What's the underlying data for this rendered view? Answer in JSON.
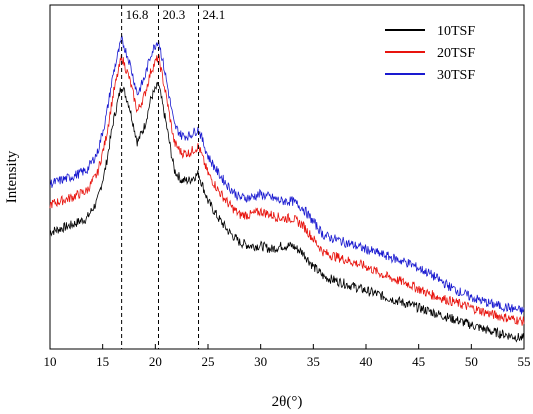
{
  "chart_data": {
    "type": "line",
    "title": "",
    "xlabel": "2θ(°)",
    "ylabel": "Intensity",
    "xlim": [
      10,
      55
    ],
    "ylim": [
      0,
      1
    ],
    "x_ticks": [
      10,
      15,
      20,
      25,
      30,
      35,
      40,
      45,
      50,
      55
    ],
    "y_ticks": [],
    "grid": false,
    "legend_position": "top-right",
    "peak_markers": [
      {
        "x": 16.8,
        "label": "16.8"
      },
      {
        "x": 20.3,
        "label": "20.3"
      },
      {
        "x": 24.1,
        "label": "24.1"
      }
    ],
    "series": [
      {
        "name": "10TSF",
        "color": "#000000",
        "x": [
          10,
          12,
          13.5,
          14.5,
          15.3,
          16,
          16.8,
          17.5,
          18.3,
          19,
          19.6,
          20.3,
          21,
          21.8,
          22.5,
          23.2,
          24.1,
          25,
          26,
          27,
          28,
          29,
          30,
          31,
          32,
          33,
          34,
          35,
          36,
          38,
          40,
          42,
          44,
          46,
          48,
          50,
          52,
          55
        ],
        "values": [
          0.34,
          0.36,
          0.38,
          0.43,
          0.53,
          0.66,
          0.77,
          0.71,
          0.6,
          0.65,
          0.73,
          0.77,
          0.66,
          0.52,
          0.49,
          0.49,
          0.51,
          0.43,
          0.38,
          0.34,
          0.31,
          0.3,
          0.3,
          0.29,
          0.3,
          0.3,
          0.28,
          0.24,
          0.21,
          0.19,
          0.17,
          0.15,
          0.13,
          0.11,
          0.09,
          0.07,
          0.05,
          0.03
        ]
      },
      {
        "name": "20TSF",
        "color": "#e8140e",
        "x": [
          10,
          12,
          13.5,
          14.5,
          15.3,
          16,
          16.8,
          17.5,
          18.3,
          19,
          19.6,
          20.3,
          21,
          21.8,
          22.5,
          23.2,
          24.1,
          25,
          26,
          27,
          28,
          29,
          30,
          31,
          32,
          33,
          34,
          35,
          36,
          38,
          40,
          42,
          44,
          46,
          48,
          50,
          52,
          55
        ],
        "values": [
          0.42,
          0.44,
          0.46,
          0.51,
          0.61,
          0.74,
          0.85,
          0.79,
          0.69,
          0.74,
          0.81,
          0.85,
          0.74,
          0.6,
          0.57,
          0.57,
          0.59,
          0.51,
          0.46,
          0.42,
          0.39,
          0.39,
          0.4,
          0.39,
          0.38,
          0.38,
          0.36,
          0.32,
          0.28,
          0.26,
          0.24,
          0.21,
          0.19,
          0.16,
          0.14,
          0.12,
          0.1,
          0.08
        ]
      },
      {
        "name": "30TSF",
        "color": "#1a1ad0",
        "x": [
          10,
          12,
          13.5,
          14.5,
          15.3,
          16,
          16.8,
          17.5,
          18.3,
          19,
          19.6,
          20.3,
          21,
          21.8,
          22.5,
          23.2,
          24.1,
          25,
          26,
          27,
          28,
          29,
          30,
          31,
          32,
          33,
          34,
          35,
          36,
          38,
          40,
          42,
          44,
          46,
          48,
          50,
          52,
          55
        ],
        "values": [
          0.48,
          0.5,
          0.52,
          0.57,
          0.67,
          0.8,
          0.9,
          0.84,
          0.74,
          0.79,
          0.86,
          0.9,
          0.79,
          0.65,
          0.62,
          0.62,
          0.64,
          0.56,
          0.51,
          0.47,
          0.44,
          0.44,
          0.45,
          0.44,
          0.43,
          0.43,
          0.41,
          0.37,
          0.33,
          0.31,
          0.29,
          0.27,
          0.25,
          0.22,
          0.18,
          0.15,
          0.13,
          0.11
        ]
      }
    ]
  }
}
